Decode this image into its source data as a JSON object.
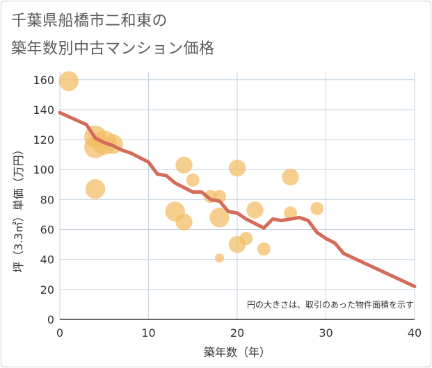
{
  "title_line1": "千葉県船橋市二和東の",
  "title_line2": "築年数別中古マンション価格",
  "chart_data": {
    "type": "scatter",
    "xlabel": "築年数（年）",
    "ylabel": "坪（3.3㎡）単価（万円）",
    "xlim": [
      0,
      40
    ],
    "ylim": [
      0,
      165
    ],
    "xticks": [
      0,
      10,
      20,
      30,
      40
    ],
    "yticks": [
      0,
      20,
      40,
      60,
      80,
      100,
      120,
      140,
      160
    ],
    "grid": true,
    "note": "円の大きさは、取引のあった物件面積を示す",
    "colors": {
      "bubble": "#f2bc63",
      "line": "#d56b5a",
      "grid": "#c5d3df"
    },
    "points": [
      {
        "x": 1,
        "y": 159,
        "size": 3
      },
      {
        "x": 4,
        "y": 122,
        "size": 4
      },
      {
        "x": 4,
        "y": 115,
        "size": 4
      },
      {
        "x": 4,
        "y": 87,
        "size": 3
      },
      {
        "x": 5,
        "y": 118,
        "size": 5
      },
      {
        "x": 6,
        "y": 117,
        "size": 3
      },
      {
        "x": 13,
        "y": 72,
        "size": 3
      },
      {
        "x": 14,
        "y": 103,
        "size": 2
      },
      {
        "x": 14,
        "y": 65,
        "size": 2
      },
      {
        "x": 15,
        "y": 93,
        "size": 1
      },
      {
        "x": 17,
        "y": 82,
        "size": 1
      },
      {
        "x": 18,
        "y": 82,
        "size": 1
      },
      {
        "x": 18,
        "y": 68,
        "size": 3
      },
      {
        "x": 18,
        "y": 41,
        "size": 0.3
      },
      {
        "x": 20,
        "y": 101,
        "size": 2
      },
      {
        "x": 20,
        "y": 50,
        "size": 2
      },
      {
        "x": 21,
        "y": 54,
        "size": 1
      },
      {
        "x": 22,
        "y": 73,
        "size": 2
      },
      {
        "x": 23,
        "y": 47,
        "size": 1
      },
      {
        "x": 26,
        "y": 95,
        "size": 2
      },
      {
        "x": 26,
        "y": 71,
        "size": 1
      },
      {
        "x": 29,
        "y": 74,
        "size": 1
      }
    ],
    "trend": {
      "x": [
        0,
        3,
        4,
        5,
        6,
        7,
        8,
        9,
        10,
        11,
        12,
        13,
        14,
        15,
        16,
        17,
        18,
        19,
        20,
        21,
        22,
        23,
        24,
        25,
        26,
        27,
        28,
        29,
        30,
        31,
        32,
        40
      ],
      "y": [
        138,
        130,
        121,
        118,
        116,
        113,
        111,
        108,
        105,
        97,
        96,
        91,
        88,
        85,
        85,
        80,
        79,
        72,
        71,
        67,
        64,
        61,
        67,
        66,
        67,
        68,
        66,
        58,
        54,
        51,
        44,
        22
      ]
    }
  }
}
